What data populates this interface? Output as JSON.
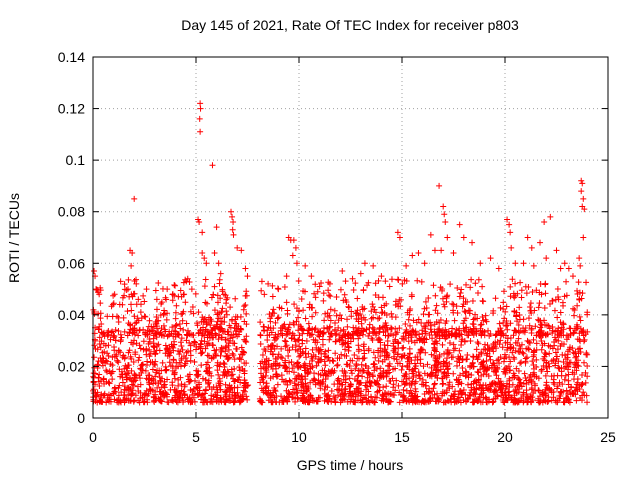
{
  "chart_data": {
    "type": "scatter",
    "title": "Day 145 of 2021, Rate Of TEC Index for receiver p803",
    "xlabel": "GPS time / hours",
    "ylabel": "ROTI / TECUs",
    "xlim": [
      0,
      25
    ],
    "ylim": [
      0,
      0.14
    ],
    "xticks": [
      0,
      5,
      10,
      15,
      20,
      25
    ],
    "xtick_labels": [
      "0",
      "5",
      "10",
      "15",
      "20",
      "25"
    ],
    "yticks": [
      0,
      0.02,
      0.04,
      0.06,
      0.08,
      0.1,
      0.12,
      0.14
    ],
    "ytick_labels": [
      "0",
      "0.02",
      "0.04",
      "0.06",
      "0.08",
      "0.1",
      "0.12",
      "0.14"
    ],
    "grid": true,
    "marker": "+",
    "series": [
      {
        "name": "ROTI",
        "color": "#ff0000",
        "gap": [
          7.55,
          8.1
        ],
        "background_band": [
          0.006,
          0.035
        ],
        "points": [
          [
            0.05,
            0.057
          ],
          [
            0.1,
            0.055
          ],
          [
            0.15,
            0.05
          ],
          [
            0.3,
            0.048
          ],
          [
            1.05,
            0.048
          ],
          [
            1.3,
            0.044
          ],
          [
            1.7,
            0.05
          ],
          [
            1.8,
            0.065
          ],
          [
            1.9,
            0.064
          ],
          [
            1.85,
            0.059
          ],
          [
            2.0,
            0.085
          ],
          [
            2.1,
            0.052
          ],
          [
            2.2,
            0.046
          ],
          [
            2.6,
            0.05
          ],
          [
            3.1,
            0.046
          ],
          [
            3.6,
            0.05
          ],
          [
            4.3,
            0.047
          ],
          [
            4.6,
            0.054
          ],
          [
            4.8,
            0.05
          ],
          [
            5.1,
            0.077
          ],
          [
            5.15,
            0.076
          ],
          [
            5.2,
            0.122
          ],
          [
            5.22,
            0.12
          ],
          [
            5.18,
            0.116
          ],
          [
            5.2,
            0.111
          ],
          [
            5.3,
            0.064
          ],
          [
            5.4,
            0.062
          ],
          [
            5.5,
            0.06
          ],
          [
            5.3,
            0.072
          ],
          [
            5.8,
            0.098
          ],
          [
            5.9,
            0.064
          ],
          [
            6.0,
            0.074
          ],
          [
            6.1,
            0.06
          ],
          [
            6.2,
            0.056
          ],
          [
            6.7,
            0.08
          ],
          [
            6.75,
            0.078
          ],
          [
            6.8,
            0.076
          ],
          [
            6.78,
            0.073
          ],
          [
            6.82,
            0.071
          ],
          [
            7.0,
            0.066
          ],
          [
            7.2,
            0.065
          ],
          [
            7.4,
            0.058
          ],
          [
            7.5,
            0.055
          ],
          [
            8.2,
            0.053
          ],
          [
            8.5,
            0.052
          ],
          [
            9.0,
            0.05
          ],
          [
            9.4,
            0.055
          ],
          [
            9.5,
            0.07
          ],
          [
            9.6,
            0.069
          ],
          [
            9.75,
            0.069
          ],
          [
            9.85,
            0.066
          ],
          [
            9.7,
            0.063
          ],
          [
            9.9,
            0.06
          ],
          [
            10.3,
            0.059
          ],
          [
            10.6,
            0.055
          ],
          [
            11.0,
            0.051
          ],
          [
            11.5,
            0.052
          ],
          [
            12.1,
            0.057
          ],
          [
            12.6,
            0.054
          ],
          [
            13.0,
            0.056
          ],
          [
            13.2,
            0.06
          ],
          [
            13.6,
            0.059
          ],
          [
            14.0,
            0.055
          ],
          [
            14.8,
            0.072
          ],
          [
            14.9,
            0.07
          ],
          [
            15.2,
            0.059
          ],
          [
            15.5,
            0.063
          ],
          [
            15.8,
            0.064
          ],
          [
            16.1,
            0.06
          ],
          [
            16.4,
            0.071
          ],
          [
            16.6,
            0.065
          ],
          [
            16.8,
            0.09
          ],
          [
            16.9,
            0.065
          ],
          [
            17.0,
            0.082
          ],
          [
            17.05,
            0.079
          ],
          [
            17.1,
            0.076
          ],
          [
            17.2,
            0.07
          ],
          [
            17.5,
            0.064
          ],
          [
            17.8,
            0.075
          ],
          [
            18.0,
            0.07
          ],
          [
            18.4,
            0.068
          ],
          [
            18.8,
            0.06
          ],
          [
            19.3,
            0.062
          ],
          [
            19.7,
            0.058
          ],
          [
            20.1,
            0.077
          ],
          [
            20.2,
            0.075
          ],
          [
            20.25,
            0.072
          ],
          [
            20.3,
            0.066
          ],
          [
            20.5,
            0.06
          ],
          [
            20.9,
            0.06
          ],
          [
            21.1,
            0.07
          ],
          [
            21.3,
            0.066
          ],
          [
            21.4,
            0.059
          ],
          [
            21.7,
            0.068
          ],
          [
            21.9,
            0.076
          ],
          [
            22.0,
            0.062
          ],
          [
            22.2,
            0.078
          ],
          [
            22.5,
            0.065
          ],
          [
            22.7,
            0.058
          ],
          [
            22.9,
            0.06
          ],
          [
            23.1,
            0.058
          ],
          [
            23.3,
            0.055
          ],
          [
            23.6,
            0.062
          ],
          [
            23.65,
            0.059
          ],
          [
            23.7,
            0.092
          ],
          [
            23.75,
            0.091
          ],
          [
            23.7,
            0.088
          ],
          [
            23.8,
            0.085
          ],
          [
            23.75,
            0.082
          ],
          [
            23.85,
            0.081
          ],
          [
            23.8,
            0.07
          ]
        ]
      }
    ]
  }
}
